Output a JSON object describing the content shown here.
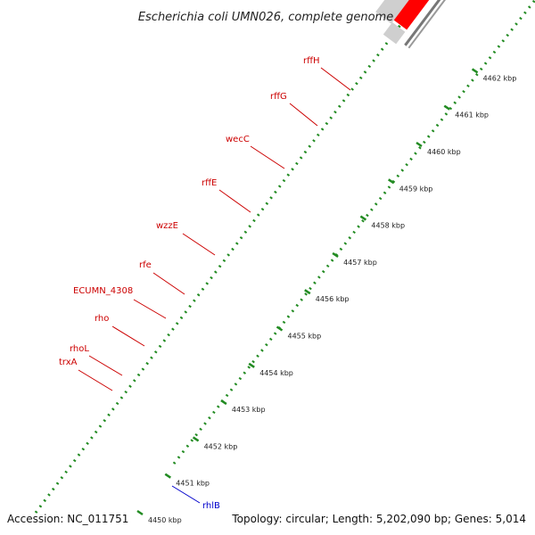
{
  "map": {
    "title": "Escherichia coli UMN026, complete genome",
    "accession": "Accession: NC_011751",
    "summary": "Topology: circular; Length: 5,202,090 bp; Genes: 5,014",
    "colors": {
      "cds_forward": "#ff0000",
      "cds_reverse": "#6b8e23",
      "gc_orange": "#ff9900",
      "gap_grey": "#cfcfcf",
      "backbone": "#777777",
      "tick_green": "#228b22",
      "label_red": "#cc0000",
      "label_blue": "#0000cc",
      "rna_cyan": "#00e5ff",
      "blue_feature": "#0000ee"
    },
    "kbp_ticks": [
      "4450 kbp",
      "4451 kbp",
      "4452 kbp",
      "4453 kbp",
      "4454 kbp",
      "4455 kbp",
      "4456 kbp",
      "4457 kbp",
      "4458 kbp",
      "4459 kbp",
      "4460 kbp",
      "4461 kbp",
      "4462 kbp"
    ],
    "gene_labels": [
      {
        "name": "rffH",
        "color": "red"
      },
      {
        "name": "rffG",
        "color": "red"
      },
      {
        "name": "wecC",
        "color": "red"
      },
      {
        "name": "rffE",
        "color": "red"
      },
      {
        "name": "wzzE",
        "color": "red"
      },
      {
        "name": "rfe",
        "color": "red"
      },
      {
        "name": "ECUMN_4308",
        "color": "red"
      },
      {
        "name": "rho",
        "color": "red"
      },
      {
        "name": "rhoL",
        "color": "red"
      },
      {
        "name": "trxA",
        "color": "red"
      },
      {
        "name": "rhlB",
        "color": "blue"
      }
    ]
  }
}
